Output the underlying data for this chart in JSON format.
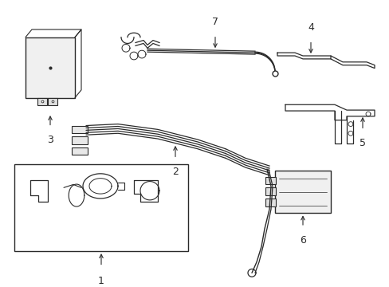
{
  "background_color": "#ffffff",
  "line_color": "#2a2a2a",
  "figsize": [
    4.89,
    3.6
  ],
  "dpi": 100,
  "label_fontsize": 9
}
